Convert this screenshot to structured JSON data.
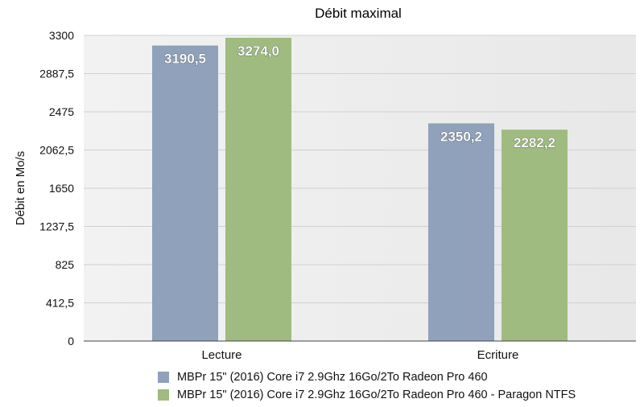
{
  "chart_data": {
    "type": "bar",
    "title": "Débit maximal",
    "ylabel": "Débit en Mo/s",
    "xlabel": "",
    "categories": [
      "Lecture",
      "Ecriture"
    ],
    "ylim": [
      0,
      3300
    ],
    "yticks": [
      "0",
      "412,5",
      "825",
      "1237,5",
      "1650",
      "2062,5",
      "2475",
      "2887,5",
      "3300"
    ],
    "ytick_values": [
      0,
      412.5,
      825,
      1237.5,
      1650,
      2062.5,
      2475,
      2887.5,
      3300
    ],
    "grid": true,
    "legend_position": "bottom",
    "series": [
      {
        "name": "MBPr 15\" (2016) Core i7 2.9Ghz 16Go/2To Radeon Pro 460",
        "values": [
          3190.5,
          2350.2
        ],
        "labels": [
          "3190,5",
          "2350,2"
        ],
        "color": "#8fa1bb"
      },
      {
        "name": "MBPr 15\" (2016) Core i7 2.9Ghz 16Go/2To Radeon Pro 460 - Paragon NTFS",
        "values": [
          3274.0,
          2282.2
        ],
        "labels": [
          "3274,0",
          "2282,2"
        ],
        "color": "#9fbb7f"
      }
    ]
  }
}
